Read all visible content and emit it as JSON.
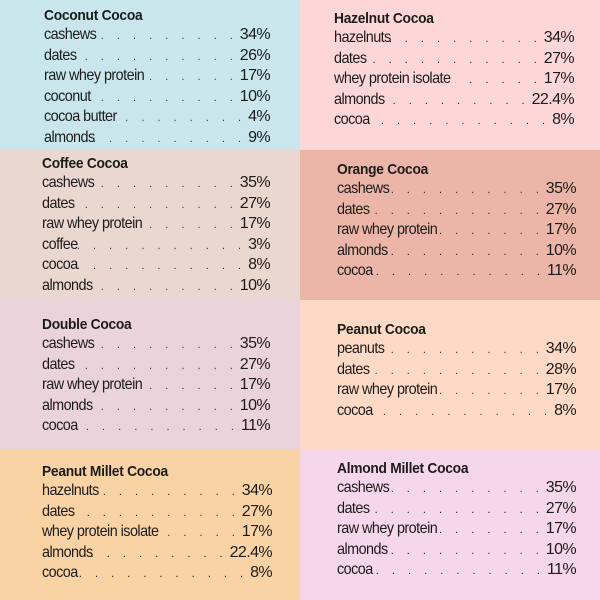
{
  "panels": [
    {
      "title": "Coconut Cocoa",
      "color": "#c8e6ec",
      "ingredients": [
        {
          "name": "cashews",
          "percent": "34%"
        },
        {
          "name": "dates",
          "percent": "26%"
        },
        {
          "name": "raw whey protein",
          "percent": "17%"
        },
        {
          "name": "coconut",
          "percent": "10%"
        },
        {
          "name": "cocoa butter",
          "percent": "4%"
        },
        {
          "name": "almonds",
          "percent": "9%"
        }
      ]
    },
    {
      "title": "Hazelnut Cocoa",
      "color": "#fdd7d7",
      "ingredients": [
        {
          "name": "hazelnuts",
          "percent": "34%"
        },
        {
          "name": "dates",
          "percent": "27%"
        },
        {
          "name": "whey protein isolate",
          "percent": "17%"
        },
        {
          "name": "almonds",
          "percent": "22.4%"
        },
        {
          "name": "cocoa",
          "percent": "8%"
        }
      ]
    },
    {
      "title": "Coffee Cocoa",
      "color": "#ead7d0",
      "ingredients": [
        {
          "name": "cashews",
          "percent": "35%"
        },
        {
          "name": "dates",
          "percent": "27%"
        },
        {
          "name": "raw whey protein",
          "percent": "17%"
        },
        {
          "name": "coffee",
          "percent": "3%"
        },
        {
          "name": "cocoa",
          "percent": "8%"
        },
        {
          "name": "almonds",
          "percent": "10%"
        }
      ]
    },
    {
      "title": "Orange Cocoa",
      "color": "#ebb6a7",
      "ingredients": [
        {
          "name": "cashews",
          "percent": "35%"
        },
        {
          "name": "dates",
          "percent": "27%"
        },
        {
          "name": "raw whey protein",
          "percent": "17%"
        },
        {
          "name": "almonds",
          "percent": "10%"
        },
        {
          "name": "cocoa",
          "percent": "11%"
        }
      ]
    },
    {
      "title": "Double Cocoa",
      "color": "#ead3da",
      "ingredients": [
        {
          "name": "cashews",
          "percent": "35%"
        },
        {
          "name": "dates",
          "percent": "27%"
        },
        {
          "name": "raw whey protein",
          "percent": "17%"
        },
        {
          "name": "almonds",
          "percent": "10%"
        },
        {
          "name": "cocoa",
          "percent": "11%"
        }
      ]
    },
    {
      "title": "Peanut Cocoa",
      "color": "#fedac6",
      "ingredients": [
        {
          "name": "peanuts",
          "percent": "34%"
        },
        {
          "name": "dates",
          "percent": "28%"
        },
        {
          "name": "raw whey protein",
          "percent": "17%"
        },
        {
          "name": "cocoa",
          "percent": "8%"
        }
      ]
    },
    {
      "title": "Peanut Millet Cocoa",
      "color": "#f9d3a4",
      "ingredients": [
        {
          "name": "hazelnuts",
          "percent": "34%"
        },
        {
          "name": "dates",
          "percent": "27%"
        },
        {
          "name": "whey protein isolate",
          "percent": "17%"
        },
        {
          "name": "almonds",
          "percent": "22.4%"
        },
        {
          "name": "cocoa",
          "percent": "8%"
        }
      ]
    },
    {
      "title": "Almond Millet Cocoa",
      "color": "#f6d6ea",
      "ingredients": [
        {
          "name": "cashews",
          "percent": "35%"
        },
        {
          "name": "dates",
          "percent": "27%"
        },
        {
          "name": "raw whey protein",
          "percent": "17%"
        },
        {
          "name": "almonds",
          "percent": "10%"
        },
        {
          "name": "cocoa",
          "percent": "11%"
        }
      ]
    }
  ],
  "leader_dots": ". . . . . . . . . . . . . . . . . . . . . . . . . . ."
}
